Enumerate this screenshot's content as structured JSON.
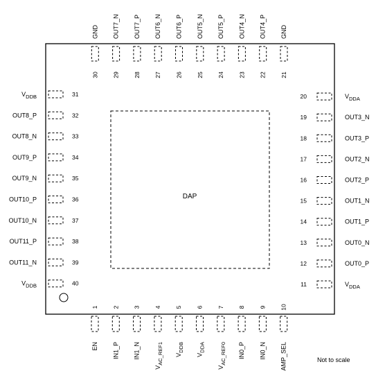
{
  "package": {
    "dap_label": "DAP",
    "scale_note": "Not to scale"
  },
  "pins": {
    "bottom": [
      {
        "num": "1",
        "name": "EN"
      },
      {
        "num": "2",
        "name": "IN1_P"
      },
      {
        "num": "3",
        "name": "IN1_N"
      },
      {
        "num": "4",
        "name": "V",
        "sub": "AC_REF1"
      },
      {
        "num": "5",
        "name": "V",
        "sub": "DDB"
      },
      {
        "num": "6",
        "name": "V",
        "sub": "DDA"
      },
      {
        "num": "7",
        "name": "V",
        "sub": "AC_REF0"
      },
      {
        "num": "8",
        "name": "IN0_P"
      },
      {
        "num": "9",
        "name": "IN0_N"
      },
      {
        "num": "10",
        "name": "AMP_SEL"
      }
    ],
    "right": [
      {
        "num": "11",
        "name": "V",
        "sub": "DDA"
      },
      {
        "num": "12",
        "name": "OUT0_P"
      },
      {
        "num": "13",
        "name": "OUT0_N"
      },
      {
        "num": "14",
        "name": "OUT1_P"
      },
      {
        "num": "15",
        "name": "OUT1_N"
      },
      {
        "num": "16",
        "name": "OUT2_P"
      },
      {
        "num": "17",
        "name": "OUT2_N"
      },
      {
        "num": "18",
        "name": "OUT3_P"
      },
      {
        "num": "19",
        "name": "OUT3_N"
      },
      {
        "num": "20",
        "name": "V",
        "sub": "DDA"
      }
    ],
    "top": [
      {
        "num": "21",
        "name": "GND"
      },
      {
        "num": "22",
        "name": "OUT4_P"
      },
      {
        "num": "23",
        "name": "OUT4_N"
      },
      {
        "num": "24",
        "name": "OUT5_P"
      },
      {
        "num": "25",
        "name": "OUT5_N"
      },
      {
        "num": "26",
        "name": "OUT6_P"
      },
      {
        "num": "27",
        "name": "OUT6_N"
      },
      {
        "num": "28",
        "name": "OUT7_P"
      },
      {
        "num": "29",
        "name": "OUT7_N"
      },
      {
        "num": "30",
        "name": "GND"
      }
    ],
    "left": [
      {
        "num": "31",
        "name": "V",
        "sub": "DDB"
      },
      {
        "num": "32",
        "name": "OUT8_P"
      },
      {
        "num": "33",
        "name": "OUT8_N"
      },
      {
        "num": "34",
        "name": "OUT9_P"
      },
      {
        "num": "35",
        "name": "OUT9_N"
      },
      {
        "num": "36",
        "name": "OUT10_P"
      },
      {
        "num": "37",
        "name": "OUT10_N"
      },
      {
        "num": "38",
        "name": "OUT11_P"
      },
      {
        "num": "39",
        "name": "OUT11_N"
      },
      {
        "num": "40",
        "name": "V",
        "sub": "DDB"
      }
    ]
  }
}
